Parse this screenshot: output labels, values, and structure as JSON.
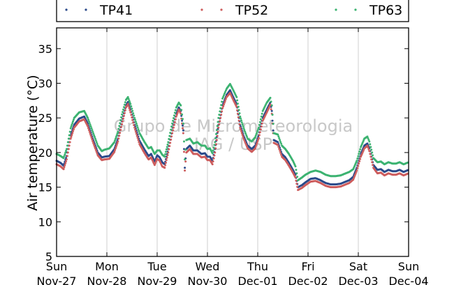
{
  "chart_data": {
    "type": "scatter",
    "ylabel": "Air temperature (°C)",
    "ylim": [
      5,
      38
    ],
    "yticks": [
      5,
      10,
      15,
      20,
      25,
      30,
      35
    ],
    "xlim": [
      0,
      7
    ],
    "grid": "vertical-only",
    "legend": {
      "placement": "top",
      "entries": [
        "TP41",
        "TP52",
        "TP63"
      ]
    },
    "watermark": [
      "Grupo de Micrometeorologia",
      "IAG / USP"
    ],
    "x_ticks": [
      {
        "day": "Sun",
        "date": "Nov-27"
      },
      {
        "day": "Mon",
        "date": "Nov-28"
      },
      {
        "day": "Tue",
        "date": "Nov-29"
      },
      {
        "day": "Wed",
        "date": "Nov-30"
      },
      {
        "day": "Thu",
        "date": "Dec-01"
      },
      {
        "day": "Fri",
        "date": "Dec-02"
      },
      {
        "day": "Sat",
        "date": "Dec-03"
      },
      {
        "day": "Sun",
        "date": "Dec-04"
      }
    ],
    "x_unit": "days since Nov-27 00:00",
    "series": [
      {
        "name": "TP41",
        "color": "#2b4a8a",
        "points": [
          [
            0,
            18.8
          ],
          [
            0.08,
            18.5
          ],
          [
            0.14,
            18.1
          ],
          [
            0.2,
            19.5
          ],
          [
            0.28,
            22.5
          ],
          [
            0.35,
            24.0
          ],
          [
            0.45,
            24.9
          ],
          [
            0.55,
            25.2
          ],
          [
            0.62,
            24.2
          ],
          [
            0.72,
            22.0
          ],
          [
            0.82,
            20.0
          ],
          [
            0.9,
            19.3
          ],
          [
            0.95,
            19.4
          ],
          [
            1.05,
            19.5
          ],
          [
            1.15,
            20.5
          ],
          [
            1.22,
            22.0
          ],
          [
            1.3,
            24.5
          ],
          [
            1.38,
            26.8
          ],
          [
            1.42,
            27.3
          ],
          [
            1.47,
            26.2
          ],
          [
            1.55,
            24.0
          ],
          [
            1.65,
            21.7
          ],
          [
            1.75,
            20.4
          ],
          [
            1.83,
            19.5
          ],
          [
            1.88,
            19.8
          ],
          [
            1.95,
            18.7
          ],
          [
            2.0,
            19.6
          ],
          [
            2.05,
            19.3
          ],
          [
            2.1,
            18.6
          ],
          [
            2.15,
            18.3
          ],
          [
            2.22,
            20.5
          ],
          [
            2.3,
            23.2
          ],
          [
            2.38,
            25.6
          ],
          [
            2.43,
            26.5
          ],
          [
            2.47,
            26.0
          ],
          [
            2.52,
            23.2
          ],
          [
            2.55,
            17.8
          ],
          [
            2.58,
            20.5
          ],
          [
            2.65,
            21.0
          ],
          [
            2.72,
            20.3
          ],
          [
            2.8,
            20.3
          ],
          [
            2.88,
            19.8
          ],
          [
            2.95,
            19.9
          ],
          [
            3.0,
            19.4
          ],
          [
            3.05,
            19.4
          ],
          [
            3.1,
            18.8
          ],
          [
            3.15,
            20.5
          ],
          [
            3.22,
            24.0
          ],
          [
            3.3,
            26.8
          ],
          [
            3.38,
            28.3
          ],
          [
            3.45,
            29.0
          ],
          [
            3.5,
            28.2
          ],
          [
            3.58,
            27.0
          ],
          [
            3.65,
            24.0
          ],
          [
            3.72,
            22.4
          ],
          [
            3.8,
            21.0
          ],
          [
            3.88,
            20.5
          ],
          [
            3.95,
            21.0
          ],
          [
            4.02,
            22.5
          ],
          [
            4.1,
            25.0
          ],
          [
            4.18,
            26.2
          ],
          [
            4.25,
            27.2
          ],
          [
            4.28,
            26.0
          ],
          [
            4.32,
            21.8
          ],
          [
            4.4,
            21.5
          ],
          [
            4.48,
            19.8
          ],
          [
            4.55,
            19.3
          ],
          [
            4.62,
            18.5
          ],
          [
            4.7,
            17.5
          ],
          [
            4.75,
            16.8
          ],
          [
            4.8,
            15.0
          ],
          [
            4.88,
            15.3
          ],
          [
            4.95,
            15.7
          ],
          [
            5.05,
            16.2
          ],
          [
            5.15,
            16.3
          ],
          [
            5.25,
            16.0
          ],
          [
            5.35,
            15.6
          ],
          [
            5.45,
            15.4
          ],
          [
            5.55,
            15.4
          ],
          [
            5.65,
            15.5
          ],
          [
            5.75,
            15.8
          ],
          [
            5.82,
            16.0
          ],
          [
            5.9,
            16.5
          ],
          [
            5.97,
            17.8
          ],
          [
            6.05,
            19.8
          ],
          [
            6.12,
            21.0
          ],
          [
            6.18,
            21.3
          ],
          [
            6.22,
            20.6
          ],
          [
            6.3,
            18.2
          ],
          [
            6.38,
            17.5
          ],
          [
            6.45,
            17.6
          ],
          [
            6.52,
            17.2
          ],
          [
            6.6,
            17.5
          ],
          [
            6.68,
            17.3
          ],
          [
            6.75,
            17.3
          ],
          [
            6.82,
            17.5
          ],
          [
            6.9,
            17.2
          ],
          [
            7.0,
            17.5
          ]
        ]
      },
      {
        "name": "TP52",
        "color": "#cd5c5c",
        "points": [
          [
            0,
            18.3
          ],
          [
            0.08,
            18.0
          ],
          [
            0.14,
            17.6
          ],
          [
            0.2,
            19.0
          ],
          [
            0.28,
            22.0
          ],
          [
            0.35,
            23.6
          ],
          [
            0.45,
            24.5
          ],
          [
            0.55,
            24.8
          ],
          [
            0.62,
            23.8
          ],
          [
            0.72,
            21.6
          ],
          [
            0.82,
            19.6
          ],
          [
            0.9,
            18.9
          ],
          [
            0.95,
            19.0
          ],
          [
            1.05,
            19.1
          ],
          [
            1.15,
            20.1
          ],
          [
            1.22,
            21.6
          ],
          [
            1.3,
            24.1
          ],
          [
            1.38,
            26.5
          ],
          [
            1.42,
            27.0
          ],
          [
            1.47,
            25.8
          ],
          [
            1.55,
            23.6
          ],
          [
            1.65,
            21.2
          ],
          [
            1.75,
            19.9
          ],
          [
            1.83,
            19.0
          ],
          [
            1.88,
            19.3
          ],
          [
            1.95,
            18.2
          ],
          [
            2.0,
            19.1
          ],
          [
            2.05,
            18.8
          ],
          [
            2.1,
            18.0
          ],
          [
            2.15,
            17.8
          ],
          [
            2.22,
            20.0
          ],
          [
            2.3,
            22.8
          ],
          [
            2.38,
            25.2
          ],
          [
            2.43,
            26.2
          ],
          [
            2.47,
            25.6
          ],
          [
            2.52,
            22.8
          ],
          [
            2.55,
            17.4
          ],
          [
            2.58,
            20.0
          ],
          [
            2.65,
            20.5
          ],
          [
            2.72,
            19.8
          ],
          [
            2.8,
            19.8
          ],
          [
            2.88,
            19.3
          ],
          [
            2.95,
            19.4
          ],
          [
            3.0,
            18.9
          ],
          [
            3.05,
            18.9
          ],
          [
            3.1,
            18.3
          ],
          [
            3.15,
            20.0
          ],
          [
            3.22,
            23.6
          ],
          [
            3.3,
            26.4
          ],
          [
            3.38,
            28.0
          ],
          [
            3.45,
            28.6
          ],
          [
            3.5,
            27.8
          ],
          [
            3.58,
            26.6
          ],
          [
            3.65,
            23.6
          ],
          [
            3.72,
            22.0
          ],
          [
            3.8,
            20.6
          ],
          [
            3.88,
            20.1
          ],
          [
            3.95,
            20.6
          ],
          [
            4.02,
            22.1
          ],
          [
            4.1,
            24.6
          ],
          [
            4.18,
            25.8
          ],
          [
            4.25,
            26.9
          ],
          [
            4.28,
            25.6
          ],
          [
            4.32,
            21.4
          ],
          [
            4.4,
            21.1
          ],
          [
            4.48,
            19.4
          ],
          [
            4.55,
            18.9
          ],
          [
            4.62,
            18.1
          ],
          [
            4.7,
            17.1
          ],
          [
            4.75,
            16.4
          ],
          [
            4.8,
            14.6
          ],
          [
            4.88,
            14.9
          ],
          [
            4.95,
            15.3
          ],
          [
            5.05,
            15.8
          ],
          [
            5.15,
            15.9
          ],
          [
            5.25,
            15.6
          ],
          [
            5.35,
            15.2
          ],
          [
            5.45,
            15.0
          ],
          [
            5.55,
            15.0
          ],
          [
            5.65,
            15.1
          ],
          [
            5.75,
            15.4
          ],
          [
            5.82,
            15.6
          ],
          [
            5.9,
            16.1
          ],
          [
            5.97,
            17.4
          ],
          [
            6.05,
            19.4
          ],
          [
            6.12,
            20.6
          ],
          [
            6.18,
            21.0
          ],
          [
            6.22,
            20.2
          ],
          [
            6.3,
            17.8
          ],
          [
            6.38,
            17.0
          ],
          [
            6.45,
            17.1
          ],
          [
            6.52,
            16.7
          ],
          [
            6.6,
            17.0
          ],
          [
            6.68,
            16.8
          ],
          [
            6.75,
            16.8
          ],
          [
            6.82,
            17.0
          ],
          [
            6.9,
            16.7
          ],
          [
            7.0,
            17.0
          ]
        ]
      },
      {
        "name": "TP63",
        "color": "#3cb371",
        "points": [
          [
            0,
            19.8
          ],
          [
            0.08,
            19.5
          ],
          [
            0.14,
            19.2
          ],
          [
            0.2,
            20.5
          ],
          [
            0.28,
            23.5
          ],
          [
            0.35,
            25.0
          ],
          [
            0.45,
            25.8
          ],
          [
            0.55,
            26.0
          ],
          [
            0.62,
            25.0
          ],
          [
            0.72,
            23.0
          ],
          [
            0.82,
            21.0
          ],
          [
            0.9,
            20.2
          ],
          [
            0.95,
            20.4
          ],
          [
            1.05,
            20.6
          ],
          [
            1.15,
            21.5
          ],
          [
            1.22,
            23.0
          ],
          [
            1.3,
            25.5
          ],
          [
            1.38,
            27.6
          ],
          [
            1.42,
            28.0
          ],
          [
            1.47,
            27.0
          ],
          [
            1.55,
            25.0
          ],
          [
            1.65,
            22.8
          ],
          [
            1.75,
            21.5
          ],
          [
            1.83,
            20.6
          ],
          [
            1.88,
            20.8
          ],
          [
            1.95,
            19.8
          ],
          [
            2.0,
            20.3
          ],
          [
            2.05,
            20.3
          ],
          [
            2.1,
            19.7
          ],
          [
            2.15,
            19.4
          ],
          [
            2.22,
            21.5
          ],
          [
            2.3,
            24.2
          ],
          [
            2.38,
            26.5
          ],
          [
            2.43,
            27.2
          ],
          [
            2.47,
            26.8
          ],
          [
            2.52,
            24.2
          ],
          [
            2.55,
            19.0
          ],
          [
            2.58,
            21.8
          ],
          [
            2.65,
            22.0
          ],
          [
            2.72,
            21.3
          ],
          [
            2.8,
            21.5
          ],
          [
            2.88,
            21.0
          ],
          [
            2.95,
            21.0
          ],
          [
            3.0,
            20.5
          ],
          [
            3.05,
            20.6
          ],
          [
            3.1,
            19.9
          ],
          [
            3.15,
            21.5
          ],
          [
            3.22,
            25.0
          ],
          [
            3.3,
            27.8
          ],
          [
            3.38,
            29.2
          ],
          [
            3.45,
            29.9
          ],
          [
            3.5,
            29.2
          ],
          [
            3.58,
            28.0
          ],
          [
            3.65,
            25.2
          ],
          [
            3.72,
            23.5
          ],
          [
            3.8,
            22.0
          ],
          [
            3.88,
            21.6
          ],
          [
            3.95,
            22.2
          ],
          [
            4.02,
            23.6
          ],
          [
            4.1,
            26.0
          ],
          [
            4.18,
            27.2
          ],
          [
            4.25,
            27.9
          ],
          [
            4.28,
            26.8
          ],
          [
            4.32,
            22.8
          ],
          [
            4.4,
            22.6
          ],
          [
            4.48,
            21.0
          ],
          [
            4.55,
            20.5
          ],
          [
            4.62,
            19.8
          ],
          [
            4.7,
            18.8
          ],
          [
            4.75,
            18.0
          ],
          [
            4.8,
            16.0
          ],
          [
            4.88,
            16.4
          ],
          [
            4.95,
            16.8
          ],
          [
            5.05,
            17.2
          ],
          [
            5.15,
            17.4
          ],
          [
            5.25,
            17.2
          ],
          [
            5.35,
            16.8
          ],
          [
            5.45,
            16.6
          ],
          [
            5.55,
            16.6
          ],
          [
            5.65,
            16.7
          ],
          [
            5.75,
            17.0
          ],
          [
            5.82,
            17.2
          ],
          [
            5.9,
            17.6
          ],
          [
            5.97,
            18.8
          ],
          [
            6.05,
            20.8
          ],
          [
            6.12,
            22.0
          ],
          [
            6.18,
            22.3
          ],
          [
            6.22,
            21.6
          ],
          [
            6.3,
            19.2
          ],
          [
            6.38,
            18.6
          ],
          [
            6.45,
            18.7
          ],
          [
            6.52,
            18.3
          ],
          [
            6.6,
            18.6
          ],
          [
            6.68,
            18.4
          ],
          [
            6.75,
            18.4
          ],
          [
            6.82,
            18.6
          ],
          [
            6.9,
            18.3
          ],
          [
            7.0,
            18.6
          ]
        ]
      }
    ]
  }
}
